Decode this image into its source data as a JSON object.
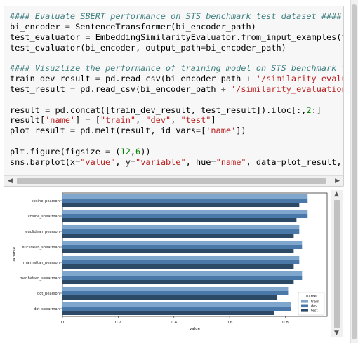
{
  "code_cell": {
    "lines": [
      [
        {
          "t": "#### Evaluate SBERT performance on STS benchmark test dataset ####",
          "c": "cm"
        }
      ],
      [
        {
          "t": "bi_encoder "
        },
        {
          "t": "=",
          "c": "o"
        },
        {
          "t": " SentenceTransformer(bi_encoder_path)"
        }
      ],
      [
        {
          "t": "test_evaluator "
        },
        {
          "t": "=",
          "c": "o"
        },
        {
          "t": " EmbeddingSimilarityEvaluator.from_input_examples(test_samp"
        }
      ],
      [
        {
          "t": "test_evaluator(bi_encoder, output_path"
        },
        {
          "t": "=",
          "c": "o"
        },
        {
          "t": "bi_encoder_path)"
        }
      ],
      [],
      [
        {
          "t": "#### Visuzlize the performance of training model on STS benchmark train, de",
          "c": "cm"
        }
      ],
      [
        {
          "t": "train_dev_result "
        },
        {
          "t": "=",
          "c": "o"
        },
        {
          "t": " pd.read_csv(bi_encoder_path "
        },
        {
          "t": "+",
          "c": "o"
        },
        {
          "t": " '/similarity_evaluation_st",
          "c": "s"
        }
      ],
      [
        {
          "t": "test_result "
        },
        {
          "t": "=",
          "c": "o"
        },
        {
          "t": " pd.read_csv(bi_encoder_path "
        },
        {
          "t": "+",
          "c": "o"
        },
        {
          "t": " '/similarity_evaluation_sts-tes",
          "c": "s"
        }
      ],
      [],
      [
        {
          "t": "result "
        },
        {
          "t": "=",
          "c": "o"
        },
        {
          "t": " pd.concat([train_dev_result, test_result]).iloc[:,"
        },
        {
          "t": "2",
          "c": "n"
        },
        {
          "t": ":]"
        }
      ],
      [
        {
          "t": "result["
        },
        {
          "t": "'name'",
          "c": "s"
        },
        {
          "t": "] "
        },
        {
          "t": "=",
          "c": "o"
        },
        {
          "t": " ["
        },
        {
          "t": "\"train\"",
          "c": "s"
        },
        {
          "t": ", "
        },
        {
          "t": "\"dev\"",
          "c": "s"
        },
        {
          "t": ", "
        },
        {
          "t": "\"test\"",
          "c": "s"
        },
        {
          "t": "]"
        }
      ],
      [
        {
          "t": "plot_result "
        },
        {
          "t": "=",
          "c": "o"
        },
        {
          "t": " pd.melt(result, id_vars"
        },
        {
          "t": "=",
          "c": "o"
        },
        {
          "t": "["
        },
        {
          "t": "'name'",
          "c": "s"
        },
        {
          "t": "])"
        }
      ],
      [],
      [
        {
          "t": "plt.figure(figsize "
        },
        {
          "t": "=",
          "c": "o"
        },
        {
          "t": " ("
        },
        {
          "t": "12",
          "c": "n"
        },
        {
          "t": ","
        },
        {
          "t": "6",
          "c": "n"
        },
        {
          "t": "))"
        }
      ],
      [
        {
          "t": "sns.barplot(x"
        },
        {
          "t": "=",
          "c": "o"
        },
        {
          "t": "\"value\"",
          "c": "s"
        },
        {
          "t": ", y"
        },
        {
          "t": "=",
          "c": "o"
        },
        {
          "t": "\"variable\"",
          "c": "s"
        },
        {
          "t": ", hue"
        },
        {
          "t": "=",
          "c": "o"
        },
        {
          "t": "\"name\"",
          "c": "s"
        },
        {
          "t": ", data"
        },
        {
          "t": "=",
          "c": "o"
        },
        {
          "t": "plot_result, palette"
        },
        {
          "t": "=",
          "c": "o"
        }
      ]
    ]
  },
  "chart_data": {
    "type": "bar",
    "orientation": "horizontal",
    "categories": [
      "cosine_pearson",
      "cosine_spearman",
      "euclidean_pearson",
      "euclidean_spearman",
      "manhattan_pearson",
      "manhattan_spearman",
      "dot_pearson",
      "dot_spearman"
    ],
    "series": [
      {
        "name": "train",
        "values": [
          0.88,
          0.88,
          0.85,
          0.86,
          0.85,
          0.86,
          0.81,
          0.82
        ]
      },
      {
        "name": "dev",
        "values": [
          0.88,
          0.88,
          0.85,
          0.86,
          0.85,
          0.86,
          0.81,
          0.82
        ]
      },
      {
        "name": "test",
        "values": [
          0.85,
          0.84,
          0.83,
          0.83,
          0.83,
          0.83,
          0.77,
          0.76
        ]
      }
    ],
    "colors": [
      "#7fa6cc",
      "#4a78a8",
      "#2c4a66"
    ],
    "xlabel": "value",
    "ylabel": "variable",
    "xlim": [
      0,
      0.95
    ],
    "xticks": [
      "0.0",
      "0.2",
      "0.4",
      "0.6",
      "0.8"
    ],
    "legend": {
      "title": "name",
      "placement": "lower-right"
    }
  }
}
